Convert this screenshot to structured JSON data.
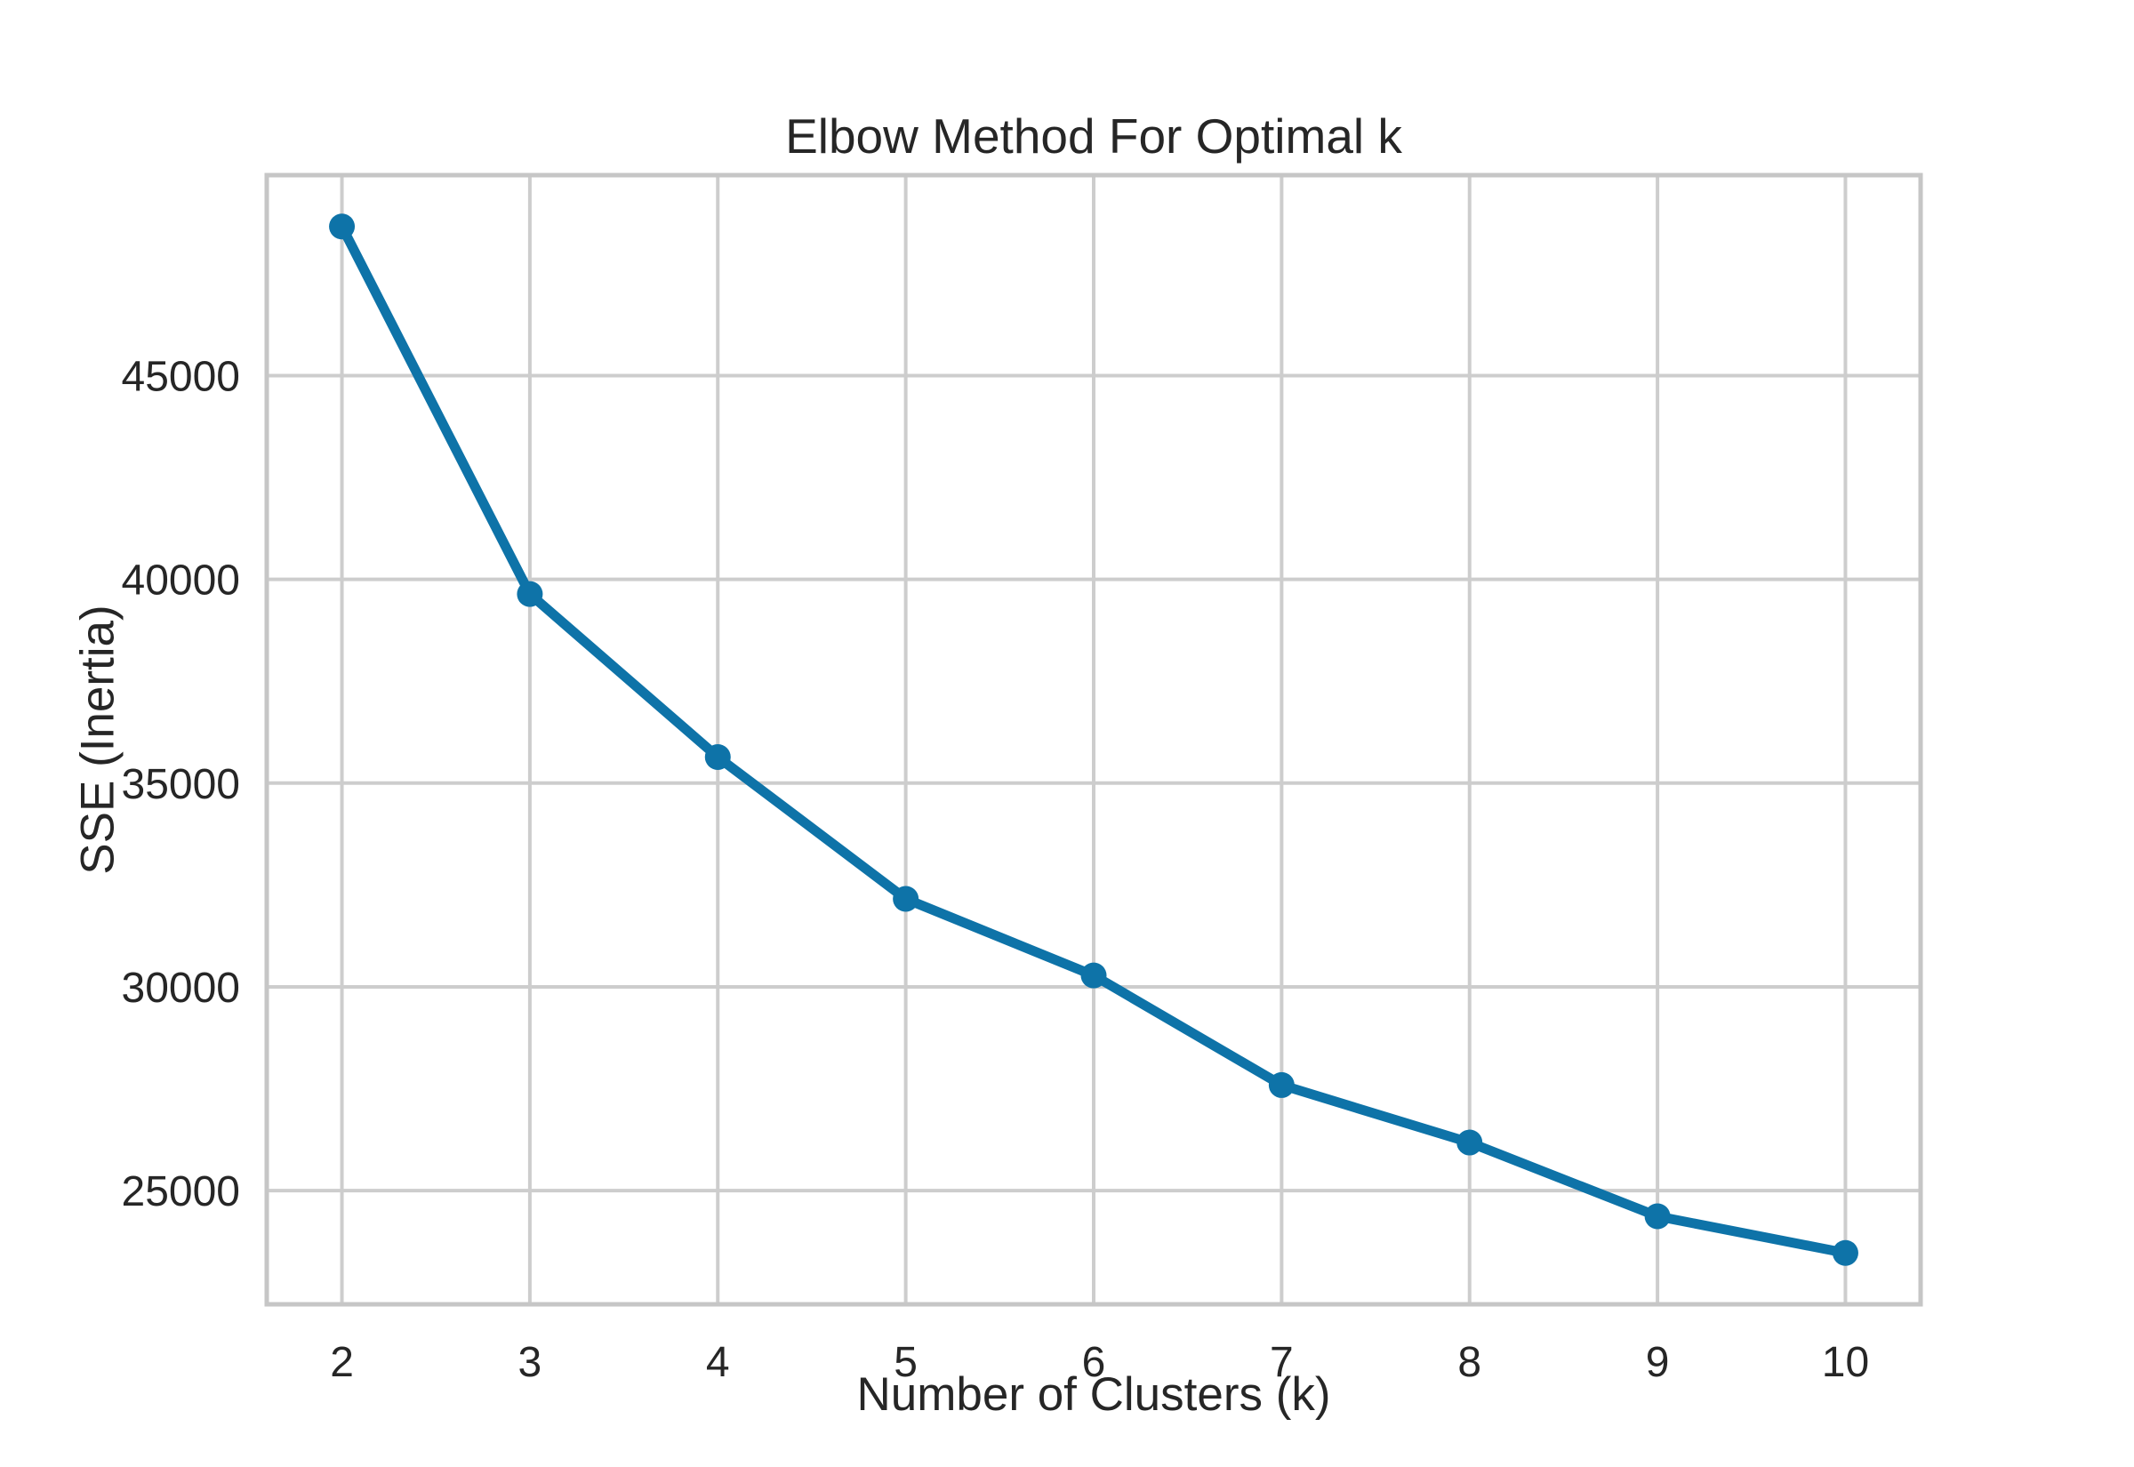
{
  "chart_data": {
    "type": "line",
    "title": "Elbow Method For Optimal k",
    "xlabel": "Number of Clusters (k)",
    "ylabel": "SSE (Inertia)",
    "x": [
      2,
      3,
      4,
      5,
      6,
      7,
      8,
      9,
      10
    ],
    "series": [
      {
        "name": "SSE (Inertia)",
        "values": [
          48660,
          39640,
          35640,
          32160,
          30280,
          27590,
          26180,
          24370,
          23470
        ]
      }
    ],
    "xticks": [
      2,
      3,
      4,
      5,
      6,
      7,
      8,
      9,
      10
    ],
    "yticks": [
      25000,
      30000,
      35000,
      40000,
      45000
    ],
    "xlim": [
      1.6,
      10.4
    ],
    "ylim": [
      22210,
      49920
    ],
    "grid": true,
    "legend": false,
    "line_color": "#0e73a8",
    "marker": "circle",
    "grid_color": "#cdcdcd",
    "axes_edge_color": "#c6c6c6",
    "text_color": "#262626",
    "background_color": "#ffffff"
  }
}
